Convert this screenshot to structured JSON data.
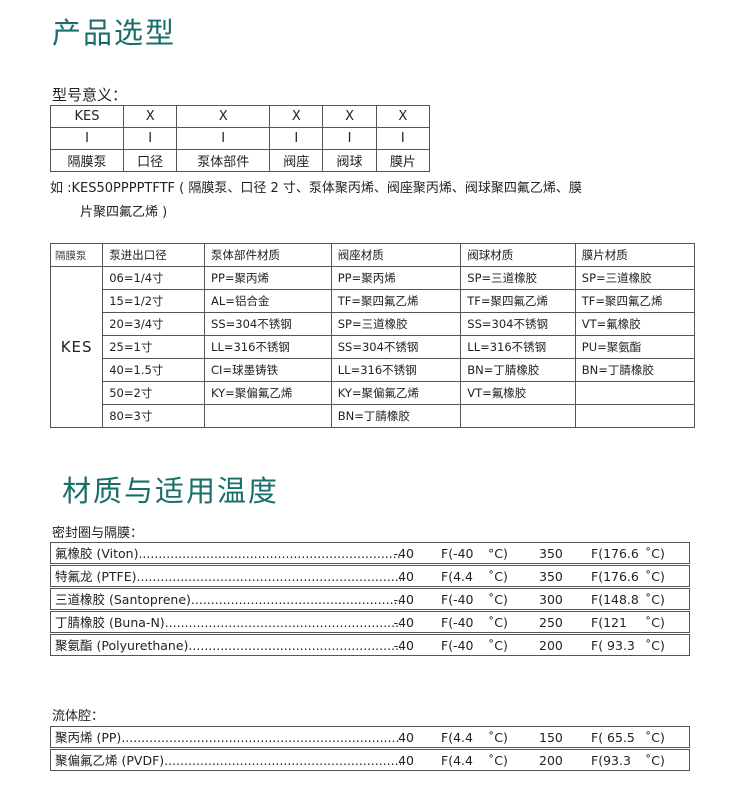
{
  "section1": {
    "title": "产品选型",
    "model_label": "型号意义：",
    "model_table": {
      "codes": [
        "KES",
        "X",
        "X",
        "X",
        "X",
        "X"
      ],
      "bars": [
        "I",
        "I",
        "I",
        "I",
        "I",
        "I"
      ],
      "names": [
        "隔膜泵",
        "口径",
        "泵体部件",
        "阀座",
        "阀球",
        "膜片"
      ]
    },
    "example_line1": "如 :KES50PPPPTFTF ( 隔膜泵、口径 2 寸、泵体聚丙烯、阀座聚丙烯、阀球聚四氟乙烯、膜",
    "example_line2": "片聚四氟乙烯 )",
    "selection_table": {
      "headers": [
        "隔膜泵",
        "泵进出口径",
        "泵体部件材质",
        "阀座材质",
        "阀球材质",
        "膜片材质"
      ],
      "model": "KES",
      "rows": [
        [
          "06=1/4寸",
          "PP=聚丙烯",
          "PP=聚丙烯",
          "SP=三道橡胶",
          "SP=三道橡胶"
        ],
        [
          "15=1/2寸",
          "AL=铝合金",
          "TF=聚四氟乙烯",
          "TF=聚四氟乙烯",
          "TF=聚四氟乙烯"
        ],
        [
          "20=3/4寸",
          "SS=304不锈钢",
          "SP=三道橡胶",
          "SS=304不锈钢",
          "VT=氟橡胶"
        ],
        [
          "25=1寸",
          "LL=316不锈钢",
          "SS=304不锈钢",
          "LL=316不锈钢",
          "PU=聚氨酯"
        ],
        [
          "40=1.5寸",
          "CI=球墨铸铁",
          "LL=316不锈钢",
          "BN=丁腈橡胶",
          "BN=丁腈橡胶"
        ],
        [
          "50=2寸",
          "KY=聚偏氟乙烯",
          "KY=聚偏氟乙烯",
          "VT=氟橡胶",
          ""
        ],
        [
          "80=3寸",
          "",
          "BN=丁腈橡胶",
          "",
          ""
        ]
      ]
    }
  },
  "section2": {
    "title": "材质与适用温度",
    "seal_label": "密封圈与隔膜：",
    "seal_rows": [
      {
        "name": "氟橡胶  (Viton)",
        "min": "-40",
        "min_c": "F(-40",
        "unit1": "°C)",
        "max": "350",
        "max_c": "F(176.6",
        "unit2": "˚C)"
      },
      {
        "name": "特氟龙  (PTFE)",
        "min": "40",
        "min_c": "F(4.4",
        "unit1": "˚C)",
        "max": "350",
        "max_c": "F(176.6",
        "unit2": "˚C)"
      },
      {
        "name": "三道橡胶  (Santoprene)",
        "min": "-40",
        "min_c": "F(-40",
        "unit1": "˚C)",
        "max": "300",
        "max_c": "F(148.8",
        "unit2": "˚C)"
      },
      {
        "name": "丁腈橡胶  (Buna-N)",
        "min": "-40",
        "min_c": "F(-40",
        "unit1": "˚C)",
        "max": "250",
        "max_c": "F(121",
        "unit2": "˚C)"
      },
      {
        "name": "聚氨酯  (Polyurethane)",
        "min": "-40",
        "min_c": "F(-40",
        "unit1": "˚C)",
        "max": "200",
        "max_c": "F( 93.3",
        "unit2": "˚C)"
      }
    ],
    "fluid_label": "流体腔：",
    "fluid_rows": [
      {
        "name": "聚丙烯  (PP)",
        "min": "40",
        "min_c": "F(4.4",
        "unit1": "˚C)",
        "max": "150",
        "max_c": "F( 65.5",
        "unit2": "˚C)"
      },
      {
        "name": "聚偏氟乙烯  (PVDF)",
        "min": "40",
        "min_c": "F(4.4",
        "unit1": "˚C)",
        "max": "200",
        "max_c": "F(93.3",
        "unit2": "˚C)"
      }
    ]
  },
  "colors": {
    "title": "#1a6e6a"
  }
}
